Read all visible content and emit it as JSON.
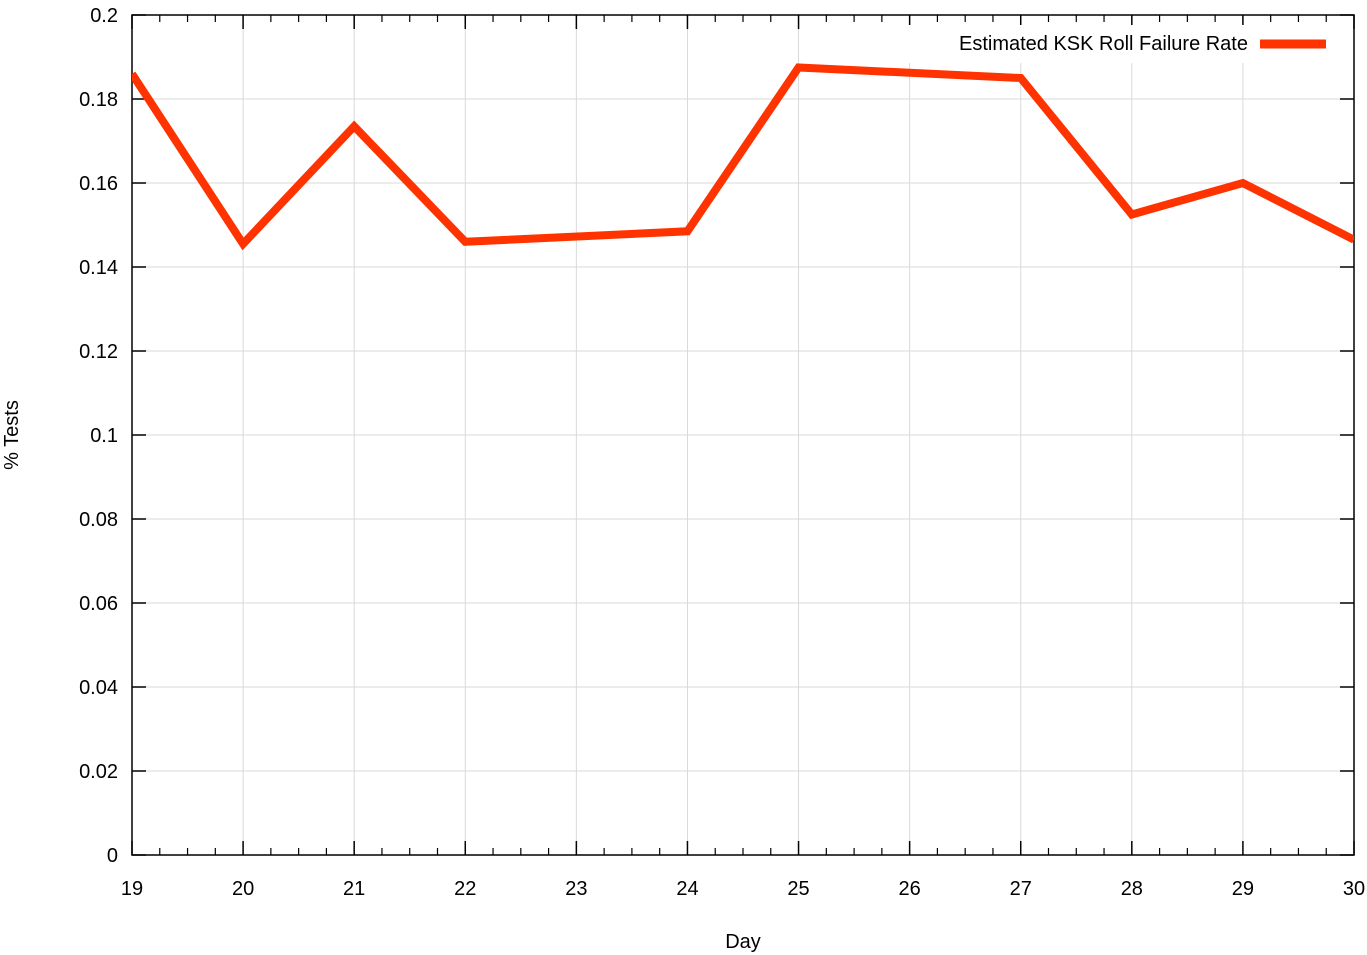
{
  "chart_data": {
    "type": "line",
    "title": "",
    "xlabel": "Day",
    "ylabel": "% Tests",
    "xlim": [
      19,
      30
    ],
    "ylim": [
      0,
      0.2
    ],
    "grid": true,
    "legend_position": "top-right",
    "x_ticks": [
      "19",
      "20",
      "21",
      "22",
      "23",
      "24",
      "25",
      "26",
      "27",
      "28",
      "29",
      "30"
    ],
    "y_ticks": [
      "0",
      "0.02",
      "0.04",
      "0.06",
      "0.08",
      "0.1",
      "0.12",
      "0.14",
      "0.16",
      "0.18",
      "0.2"
    ],
    "series": [
      {
        "name": "Estimated KSK Roll Failure Rate",
        "color": "#ff3300",
        "x": [
          19,
          20,
          21,
          22,
          24,
          25,
          27,
          28,
          29,
          30
        ],
        "y": [
          0.186,
          0.1455,
          0.1735,
          0.146,
          0.1485,
          0.1875,
          0.185,
          0.1525,
          0.16,
          0.1465
        ]
      }
    ]
  }
}
